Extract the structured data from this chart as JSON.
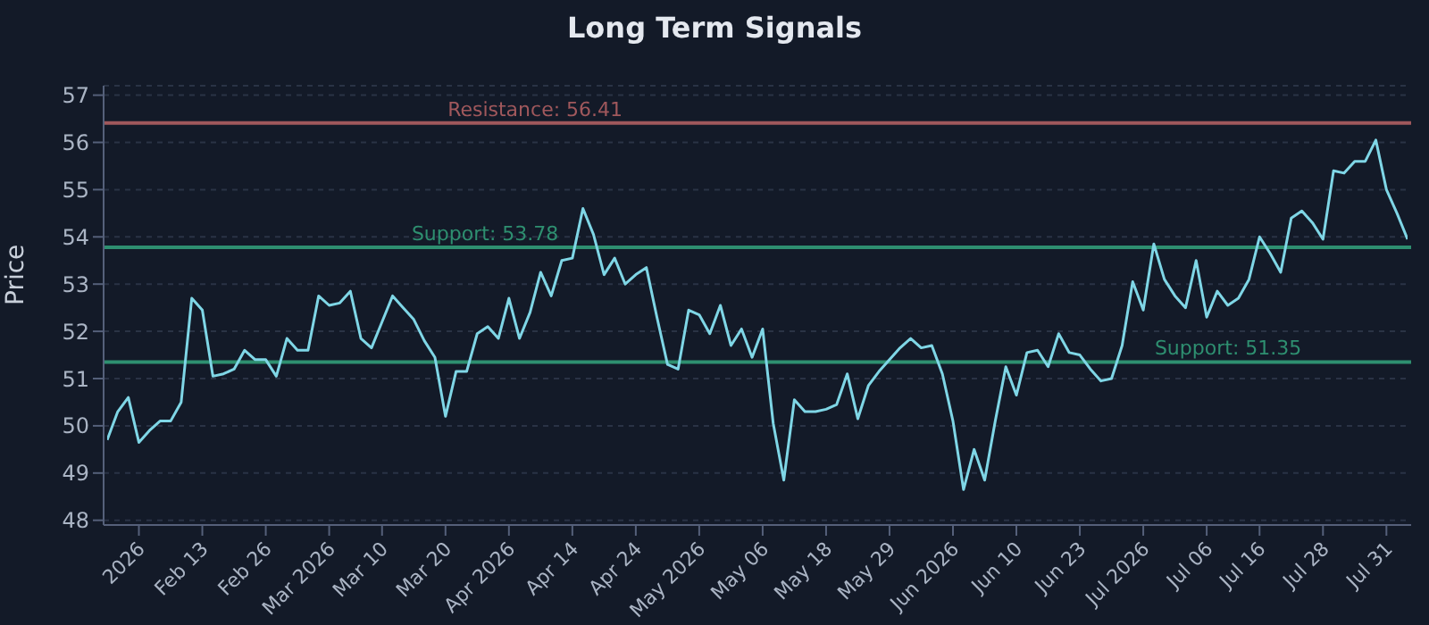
{
  "chart_data": {
    "type": "line",
    "title": "Long Term Signals",
    "ylabel": "Price",
    "categories": [
      null,
      null,
      null,
      "2026",
      null,
      null,
      null,
      null,
      null,
      "Feb 13",
      null,
      null,
      null,
      null,
      null,
      "Feb 26",
      null,
      null,
      null,
      null,
      null,
      "Mar 2026",
      null,
      null,
      null,
      null,
      "Mar 10",
      null,
      null,
      null,
      null,
      null,
      "Mar 20",
      null,
      null,
      null,
      null,
      null,
      "Apr 2026",
      null,
      null,
      null,
      null,
      null,
      "Apr 14",
      null,
      null,
      null,
      null,
      null,
      "Apr 24",
      null,
      null,
      null,
      null,
      null,
      "May 2026",
      null,
      null,
      null,
      null,
      null,
      "May 06",
      null,
      null,
      null,
      null,
      null,
      "May 18",
      null,
      null,
      null,
      null,
      null,
      "May 29",
      null,
      null,
      null,
      null,
      null,
      "Jun 2026",
      null,
      null,
      null,
      null,
      null,
      "Jun 10",
      null,
      null,
      null,
      null,
      null,
      "Jun 23",
      null,
      null,
      null,
      null,
      null,
      "Jul 2026",
      null,
      null,
      null,
      null,
      null,
      "Jul 06",
      null,
      null,
      null,
      null,
      "Jul 16",
      null,
      null,
      null,
      null,
      null,
      "Jul 28",
      null,
      null,
      null,
      null,
      null,
      "Jul 31",
      null,
      null
    ],
    "series": [
      {
        "color": "#7fd6e6",
        "values": [
          49.7,
          50.3,
          50.6,
          49.65,
          49.9,
          50.1,
          50.1,
          50.5,
          52.7,
          52.45,
          51.05,
          51.1,
          51.2,
          51.6,
          51.4,
          51.4,
          51.05,
          51.85,
          51.6,
          51.6,
          52.75,
          52.55,
          52.6,
          52.85,
          51.85,
          51.65,
          52.2,
          52.75,
          52.5,
          52.25,
          51.8,
          51.45,
          50.2,
          51.15,
          51.15,
          51.95,
          52.1,
          51.85,
          52.7,
          51.85,
          52.4,
          53.25,
          52.75,
          53.5,
          53.55,
          54.6,
          54.05,
          53.2,
          53.55,
          53.0,
          53.2,
          53.35,
          52.3,
          51.3,
          51.2,
          52.45,
          52.35,
          51.95,
          52.55,
          51.7,
          52.05,
          51.45,
          52.05,
          50.05,
          48.85,
          50.55,
          50.3,
          50.3,
          50.35,
          50.45,
          51.1,
          50.15,
          50.85,
          51.15,
          51.4,
          51.65,
          51.85,
          51.65,
          51.7,
          51.1,
          50.1,
          48.65,
          49.5,
          48.85,
          50.1,
          51.25,
          50.65,
          51.55,
          51.6,
          51.25,
          51.95,
          51.55,
          51.5,
          51.2,
          50.95,
          51.0,
          51.7,
          53.05,
          52.45,
          53.85,
          53.1,
          52.75,
          52.5,
          53.5,
          52.3,
          52.85,
          52.55,
          52.7,
          53.1,
          54.0,
          53.65,
          53.25,
          54.4,
          54.55,
          54.3,
          53.95,
          55.4,
          55.35,
          55.6,
          55.6,
          56.05,
          55.0,
          54.5,
          53.95
        ]
      }
    ],
    "ylim": [
      47.9,
      57.2
    ],
    "yticks": [
      48,
      49,
      50,
      51,
      52,
      53,
      54,
      55,
      56,
      57
    ],
    "grid": "y",
    "marker": "none",
    "line_style": "solid",
    "legend": false,
    "ref_lines": [
      {
        "axis": "y",
        "value": 56.41,
        "label": "Resistance: 56.41",
        "color": "#a0585c"
      },
      {
        "axis": "y",
        "value": 53.78,
        "label": "Support: 53.78",
        "color": "#2e8f70"
      },
      {
        "axis": "y",
        "value": 51.35,
        "label": "Support: 51.35",
        "color": "#2e8f70"
      }
    ]
  }
}
